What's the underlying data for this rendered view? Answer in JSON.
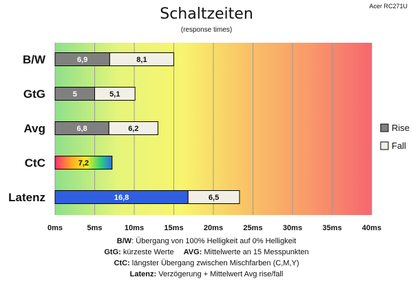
{
  "brand": "Acer RC271U",
  "chart_data": {
    "type": "bar",
    "orientation": "horizontal",
    "stacked": true,
    "title": "Schaltzeiten",
    "subtitle": "(response times)",
    "categories": [
      "B/W",
      "GtG",
      "Avg",
      "CtC",
      "Latenz"
    ],
    "series": [
      {
        "name": "Rise",
        "values": [
          6.9,
          5,
          6.8,
          7.2,
          16.8
        ],
        "labels": [
          "6,9",
          "5",
          "6,8",
          "7,2",
          "16,8"
        ],
        "color": "#808080"
      },
      {
        "name": "Fall",
        "values": [
          8.1,
          5.1,
          6.2,
          null,
          6.5
        ],
        "labels": [
          "8,1",
          "5,1",
          "6,2",
          "",
          "6,5"
        ],
        "color": "#f2f0e6"
      }
    ],
    "special_colors": {
      "CtC": "rainbow",
      "Latenz": "#2f5fe0"
    },
    "x_ticks": [
      "0ms",
      "5ms",
      "10ms",
      "15ms",
      "20ms",
      "25ms",
      "30ms",
      "35ms",
      "40ms"
    ],
    "xlim": [
      0,
      40
    ],
    "grid": true,
    "background": "green-yellow-red gradient",
    "legend_position": "right"
  },
  "footnotes": [
    {
      "bold": "B/W",
      "text": ":  Übergang von 100% Helligkeit auf 0% Helligkeit"
    },
    {
      "bold": "GtG:",
      "text": " kürzeste  Werte",
      "bold2": "AVG:",
      "text2": " Mittelwerte  an 15 Messpunkten"
    },
    {
      "bold": "CtC:",
      "text": " längster Übergang  zwischen Mischfarben  (C,M,Y)"
    },
    {
      "bold": "Latenz:",
      "text": " Verzögerung  + Mittelwert Avg rise/fall"
    }
  ]
}
